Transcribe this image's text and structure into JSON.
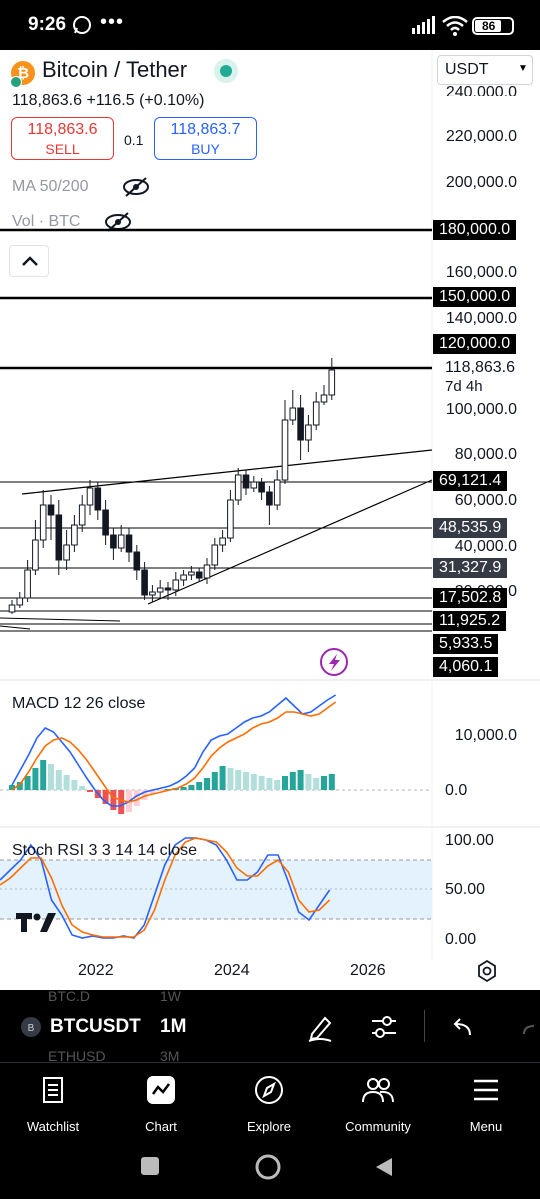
{
  "status_bar": {
    "time": "9:26",
    "battery": "86"
  },
  "header": {
    "pair": "Bitcoin / Tether",
    "currency_select": "USDT",
    "price_line": "118,863.6 +116.5 (+0.10%)",
    "sell_price": "118,863.6",
    "sell_label": "SELL",
    "spread": "0.1",
    "buy_price": "118,863.7",
    "buy_label": "BUY",
    "ma_label": "MA 50/200",
    "vol_label": "Vol · BTC"
  },
  "price_axis": {
    "ticks": [
      "240,000.0",
      "220,000.0",
      "200,000.0",
      "160,000.0",
      "140,000.0",
      "100,000.0",
      "80,000.0",
      "60,000.0",
      "40,000.0",
      "20,000.0"
    ],
    "current_price": "118,863.6",
    "countdown": "7d 4h",
    "level_tags": [
      "180,000.0",
      "150,000.0",
      "120,000.0",
      "69,121.4",
      "48,535.9",
      "31,327.9",
      "17,502.8",
      "11,925.2",
      "5,933.5",
      "4,060.1"
    ]
  },
  "macd": {
    "title": "MACD 12 26 close",
    "ticks": [
      "10,000.0",
      "0.0"
    ]
  },
  "stoch": {
    "title": "Stoch RSI 3 3 14 14 close",
    "ticks": [
      "100.00",
      "50.00",
      "0.00"
    ]
  },
  "time_axis": {
    "labels": [
      "2022",
      "2024",
      "2026"
    ]
  },
  "bottom_toolbar": {
    "symbol": "BTCUSDT",
    "interval": "1M",
    "ghost_symbol_top": "BTC.D",
    "ghost_interval_top": "1W",
    "ghost_symbol_bottom": "ETHUSD",
    "ghost_interval_bottom": "3M"
  },
  "nav": {
    "watchlist": "Watchlist",
    "chart": "Chart",
    "explore": "Explore",
    "community": "Community",
    "menu": "Menu"
  },
  "colors": {
    "sell": "#e53935",
    "buy": "#2962ff",
    "up": "#26a69a",
    "down": "#ef5350",
    "macd_line": "#2962ff",
    "signal_line": "#ff6d00",
    "stoch_band": "#e3f2fd"
  }
}
